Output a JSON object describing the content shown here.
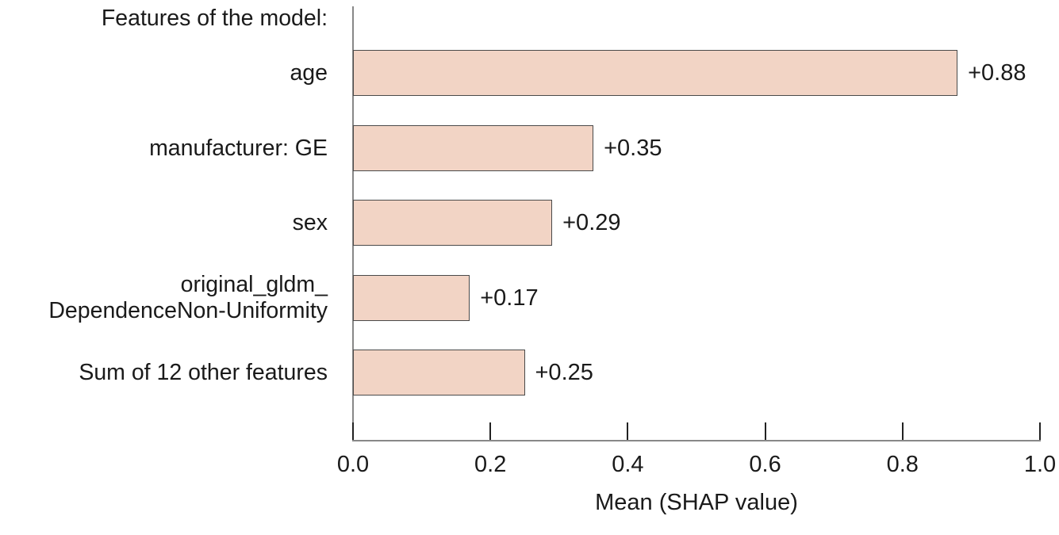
{
  "chart_data": {
    "type": "bar",
    "orientation": "horizontal",
    "title": "Features of the model:",
    "xlabel": "Mean (SHAP value)",
    "xlim": [
      0.0,
      1.0
    ],
    "grid": false,
    "legend": null,
    "categories": [
      "age",
      "manufacturer: GE",
      "sex",
      "original_gldm_\nDependenceNon-Uniformity",
      "Sum of 12 other features"
    ],
    "values": [
      0.88,
      0.35,
      0.29,
      0.17,
      0.25
    ],
    "value_labels": [
      "+0.88",
      "+0.35",
      "+0.29",
      "+0.17",
      "+0.25"
    ],
    "xtick_values": [
      0.0,
      0.2,
      0.4,
      0.6,
      0.8,
      1.0
    ],
    "xtick_labels": [
      "0.0",
      "0.2",
      "0.4",
      "0.6",
      "0.8",
      "1.0"
    ],
    "colors": {
      "bar_fill": "#F2D4C5",
      "bar_border": "#4A4A4A",
      "axis_line": "#888888",
      "tick_mark": "#222222",
      "text": "#1A1A1A"
    }
  }
}
